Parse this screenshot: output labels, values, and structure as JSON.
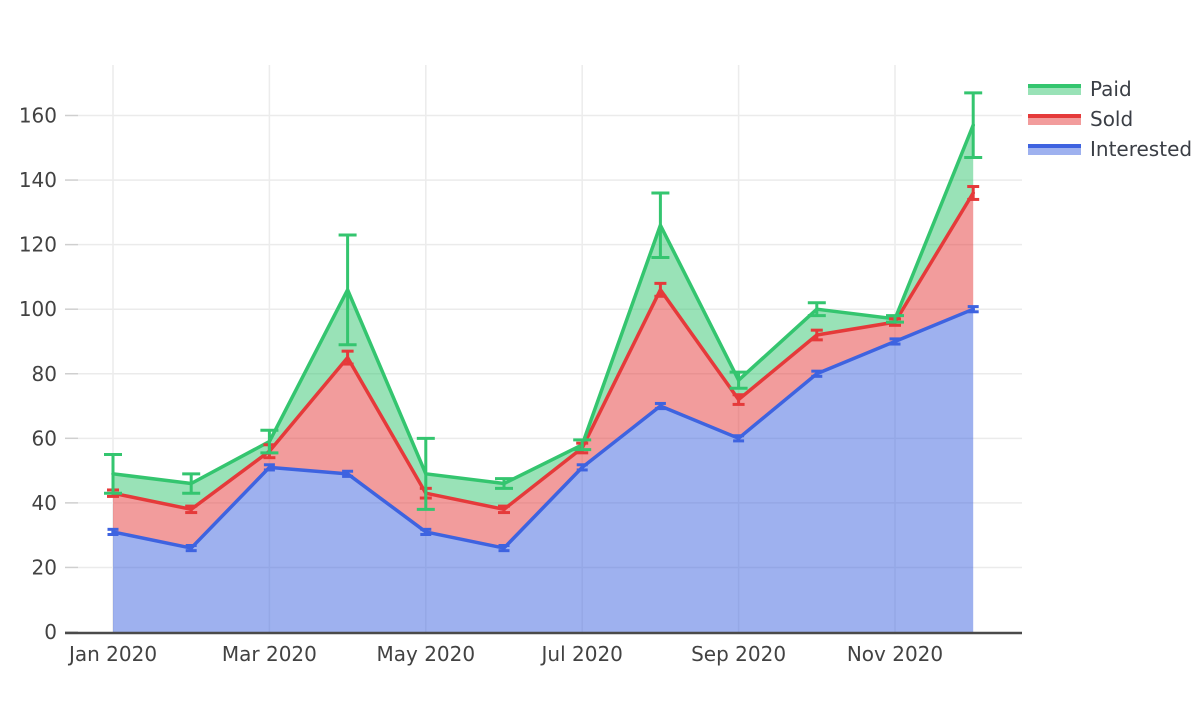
{
  "chart_data": {
    "type": "area",
    "title": "",
    "categories": [
      "Jan 2020",
      "Feb 2020",
      "Mar 2020",
      "Apr 2020",
      "May 2020",
      "Jun 2020",
      "Jul 2020",
      "Aug 2020",
      "Sep 2020",
      "Oct 2020",
      "Nov 2020",
      "Dec 2020"
    ],
    "x_axis": {
      "tick_labels": [
        "Jan 2020",
        "Mar 2020",
        "May 2020",
        "Jul 2020",
        "Sep 2020",
        "Nov 2020"
      ]
    },
    "y_axis": {
      "ticks": [
        0,
        20,
        40,
        60,
        80,
        100,
        120,
        140,
        160
      ],
      "range": [
        0,
        176
      ]
    },
    "grid": true,
    "legend_position": "top-right",
    "series": [
      {
        "name": "Interested",
        "line_color": "#3e63e0",
        "fill_color": "rgba(62,99,224,0.5)",
        "values": [
          31,
          26,
          51,
          49,
          31,
          26,
          51,
          70,
          60,
          80,
          90,
          100
        ],
        "errors": [
          0.8,
          0.8,
          0.8,
          0.8,
          0.8,
          0.8,
          0.8,
          0.8,
          0.8,
          0.8,
          0.8,
          0.8
        ],
        "cap_width": 11
      },
      {
        "name": "Sold",
        "line_color": "#e53a3a",
        "fill_color": "rgba(229,58,58,0.5)",
        "values": [
          43,
          38,
          56,
          85,
          43,
          38,
          57,
          106,
          72,
          92,
          96,
          136
        ],
        "errors": [
          1,
          1,
          2,
          2,
          1.5,
          1,
          1.5,
          2,
          1.5,
          1.5,
          1,
          2
        ],
        "cap_width": 12
      },
      {
        "name": "Paid",
        "line_color": "#34c56f",
        "fill_color": "rgba(52,197,111,0.5)",
        "values": [
          49,
          46,
          59,
          106,
          49,
          46,
          58,
          126,
          78,
          100,
          97,
          157
        ],
        "errors": [
          6,
          3,
          3.5,
          17,
          11,
          1.5,
          1.5,
          10,
          2.5,
          2,
          1,
          10
        ],
        "cap_width": 18
      }
    ]
  },
  "legend": {
    "items": [
      {
        "label": "Paid",
        "line_color": "#34c56f",
        "fill_color": "rgba(52,197,111,0.5)"
      },
      {
        "label": "Sold",
        "line_color": "#e53a3a",
        "fill_color": "rgba(229,58,58,0.5)"
      },
      {
        "label": "Interested",
        "line_color": "#3e63e0",
        "fill_color": "rgba(62,99,224,0.5)"
      }
    ]
  },
  "axis_colors": {
    "baseline": "#4a4a4a",
    "gridline": "#ebebeb",
    "tick_mark": "#cfcfcf",
    "label_text": "#424242"
  }
}
